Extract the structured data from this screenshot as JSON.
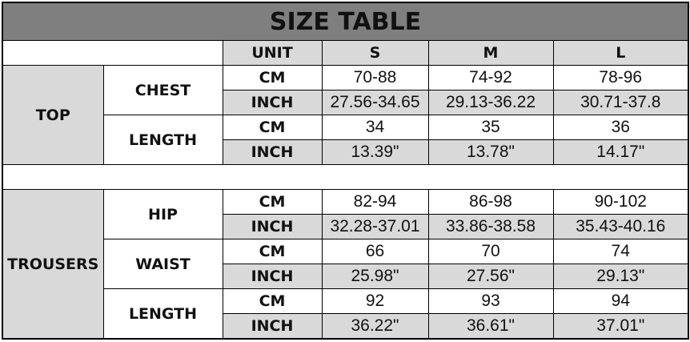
{
  "title": "SIZE TABLE",
  "header": {
    "unit": "UNIT",
    "sizes": [
      "S",
      "M",
      "L"
    ]
  },
  "colors": {
    "title_bg": "#7f7f7f",
    "shade": "#d9d9d9"
  },
  "sections": [
    {
      "name": "TOP",
      "measures": [
        {
          "name": "CHEST",
          "rows": [
            {
              "unit": "CM",
              "values": [
                "70-88",
                "74-92",
                "78-96"
              ]
            },
            {
              "unit": "INCH",
              "values": [
                "27.56-34.65",
                "29.13-36.22",
                "30.71-37.8"
              ]
            }
          ]
        },
        {
          "name": "LENGTH",
          "rows": [
            {
              "unit": "CM",
              "values": [
                "34",
                "35",
                "36"
              ]
            },
            {
              "unit": "INCH",
              "values": [
                "13.39\"",
                "13.78\"",
                "14.17\""
              ]
            }
          ]
        }
      ]
    },
    {
      "name": "TROUSERS",
      "measures": [
        {
          "name": "HIP",
          "rows": [
            {
              "unit": "CM",
              "values": [
                "82-94",
                "86-98",
                "90-102"
              ]
            },
            {
              "unit": "INCH",
              "values": [
                "32.28-37.01",
                "33.86-38.58",
                "35.43-40.16"
              ]
            }
          ]
        },
        {
          "name": "WAIST",
          "rows": [
            {
              "unit": "CM",
              "values": [
                "66",
                "70",
                "74"
              ]
            },
            {
              "unit": "INCH",
              "values": [
                "25.98\"",
                "27.56\"",
                "29.13\""
              ]
            }
          ]
        },
        {
          "name": "LENGTH",
          "rows": [
            {
              "unit": "CM",
              "values": [
                "92",
                "93",
                "94"
              ]
            },
            {
              "unit": "INCH",
              "values": [
                "36.22\"",
                "36.61\"",
                "37.01\""
              ]
            }
          ]
        }
      ]
    }
  ]
}
